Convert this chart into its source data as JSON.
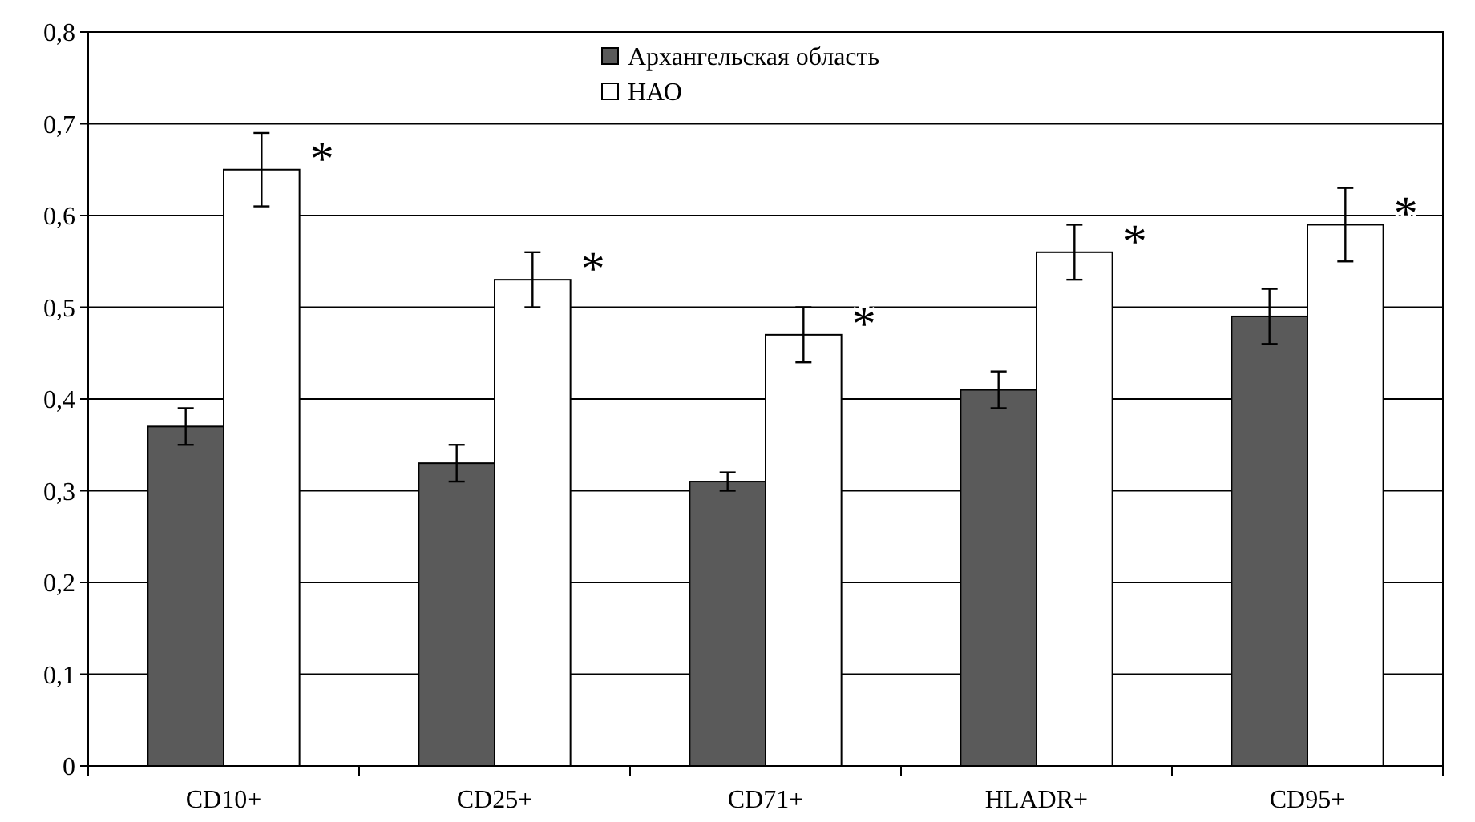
{
  "chart_data": {
    "type": "bar",
    "categories": [
      "CD10+",
      "CD25+",
      "CD71+",
      "HLADR+",
      "CD95+"
    ],
    "series": [
      {
        "name": "Архангельская область",
        "color": "#5a5a5a",
        "values": [
          0.37,
          0.33,
          0.31,
          0.41,
          0.49
        ],
        "errors": [
          0.02,
          0.02,
          0.01,
          0.02,
          0.03
        ]
      },
      {
        "name": "НАО",
        "color": "#ffffff",
        "values": [
          0.65,
          0.53,
          0.47,
          0.56,
          0.59
        ],
        "errors": [
          0.04,
          0.03,
          0.03,
          0.03,
          0.04
        ]
      }
    ],
    "ylim": [
      0,
      0.8
    ],
    "yticks": [
      {
        "value": 0,
        "label": "0"
      },
      {
        "value": 0.1,
        "label": "0,1"
      },
      {
        "value": 0.2,
        "label": "0,2"
      },
      {
        "value": 0.3,
        "label": "0,3"
      },
      {
        "value": 0.4,
        "label": "0,4"
      },
      {
        "value": 0.5,
        "label": "0,5"
      },
      {
        "value": 0.6,
        "label": "0,6"
      },
      {
        "value": 0.7,
        "label": "0,7"
      },
      {
        "value": 0.8,
        "label": "0,8"
      }
    ],
    "grid": "y",
    "legend": "top",
    "annotations": [
      "*",
      "*",
      "*",
      "*",
      "*"
    ]
  }
}
